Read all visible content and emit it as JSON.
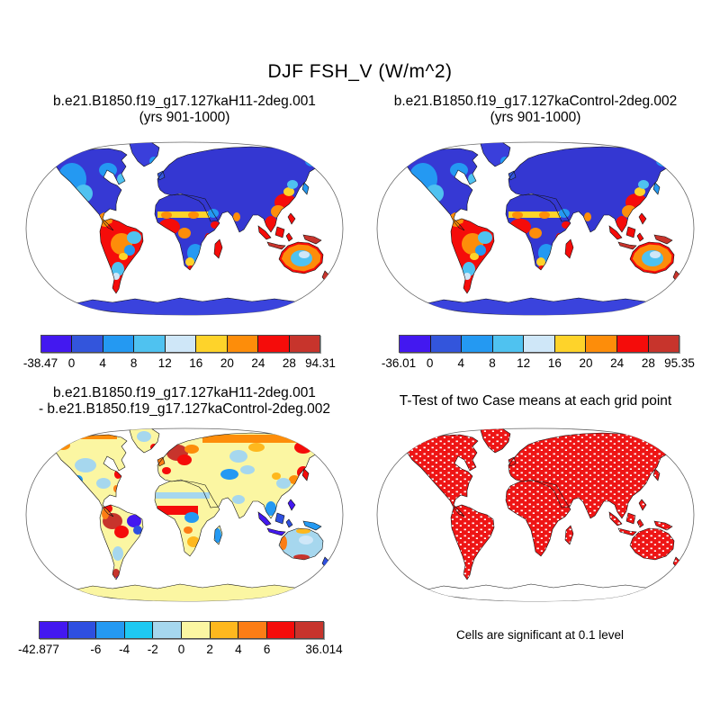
{
  "title": "DJF FSH_V (W/m^2)",
  "panels": {
    "top_left": {
      "title": "b.e21.B1850.f19_g17.127kaH11-2deg.001",
      "subtitle": "(yrs 901-1000)"
    },
    "top_right": {
      "title": "b.e21.B1850.f19_g17.127kaControl-2deg.002",
      "subtitle": "(yrs 901-1000)"
    },
    "bottom_left": {
      "title_line1": "b.e21.B1850.f19_g17.127kaH11-2deg.001",
      "title_line2": "- b.e21.B1850.f19_g17.127kaControl-2deg.002"
    },
    "bottom_right": {
      "title": "T-Test of two Case means at each grid point",
      "annotation": "Cells are significant at 0.1 level"
    }
  },
  "chart_data": [
    {
      "type": "heatmap",
      "panel": "top-left",
      "projection": "robinson",
      "variable": "FSH_V",
      "season": "DJF",
      "units": "W/m^2",
      "title": "b.e21.B1850.f19_g17.127kaH11-2deg.001",
      "subtitle": "(yrs 901-1000)",
      "range": {
        "min": -38.47,
        "max": 94.31
      },
      "colorbar": {
        "colors": [
          "#4318f0",
          "#3355dc",
          "#2499f2",
          "#4fc2f0",
          "#cfe7f8",
          "#fed32a",
          "#fd8d0a",
          "#f50c0a",
          "#c7342c"
        ],
        "labels": [
          {
            "text": "-38.47",
            "pos": 0
          },
          {
            "text": "0",
            "pos": 0.1111
          },
          {
            "text": "4",
            "pos": 0.2222
          },
          {
            "text": "8",
            "pos": 0.3333
          },
          {
            "text": "12",
            "pos": 0.4444
          },
          {
            "text": "16",
            "pos": 0.5556
          },
          {
            "text": "20",
            "pos": 0.6667
          },
          {
            "text": "24",
            "pos": 0.7778
          },
          {
            "text": "28",
            "pos": 0.8889
          },
          {
            "text": "94.31",
            "pos": 1
          }
        ]
      }
    },
    {
      "type": "heatmap",
      "panel": "top-right",
      "projection": "robinson",
      "variable": "FSH_V",
      "season": "DJF",
      "units": "W/m^2",
      "title": "b.e21.B1850.f19_g17.127kaControl-2deg.002",
      "subtitle": "(yrs 901-1000)",
      "range": {
        "min": -36.01,
        "max": 95.35
      },
      "colorbar": {
        "colors": [
          "#4318f0",
          "#3355dc",
          "#2499f2",
          "#4fc2f0",
          "#cfe7f8",
          "#fed32a",
          "#fd8d0a",
          "#f50c0a",
          "#c7342c"
        ],
        "labels": [
          {
            "text": "-36.01",
            "pos": 0
          },
          {
            "text": "0",
            "pos": 0.1111
          },
          {
            "text": "4",
            "pos": 0.2222
          },
          {
            "text": "8",
            "pos": 0.3333
          },
          {
            "text": "12",
            "pos": 0.4444
          },
          {
            "text": "16",
            "pos": 0.5556
          },
          {
            "text": "20",
            "pos": 0.6667
          },
          {
            "text": "24",
            "pos": 0.7778
          },
          {
            "text": "28",
            "pos": 0.8889
          },
          {
            "text": "95.35",
            "pos": 1
          }
        ]
      }
    },
    {
      "type": "heatmap",
      "panel": "bottom-left",
      "projection": "robinson",
      "variable": "FSH_V difference",
      "title": "b.e21.B1850.f19_g17.127kaH11-2deg.001 - b.e21.B1850.f19_g17.127kaControl-2deg.002",
      "range": {
        "min": -42.877,
        "max": 36.014
      },
      "colorbar": {
        "colors": [
          "#4318f0",
          "#2e4fe0",
          "#2499f2",
          "#1ec9f2",
          "#a6d7ee",
          "#fbf6a2",
          "#feb81e",
          "#fc7d15",
          "#f50c0a",
          "#c7342c"
        ],
        "labels": [
          {
            "text": "-42.877",
            "pos": 0
          },
          {
            "text": "-6",
            "pos": 0.2
          },
          {
            "text": "-4",
            "pos": 0.3
          },
          {
            "text": "-2",
            "pos": 0.4
          },
          {
            "text": "0",
            "pos": 0.5
          },
          {
            "text": "2",
            "pos": 0.6
          },
          {
            "text": "4",
            "pos": 0.7
          },
          {
            "text": "6",
            "pos": 0.8
          },
          {
            "text": "36.014",
            "pos": 1
          }
        ]
      }
    },
    {
      "type": "map",
      "panel": "bottom-right",
      "projection": "robinson",
      "title": "T-Test of two Case means at each grid point",
      "annotation": "Cells are significant at 0.1 level",
      "significance_level": "0.1",
      "significant_color": "#ee1515"
    }
  ]
}
